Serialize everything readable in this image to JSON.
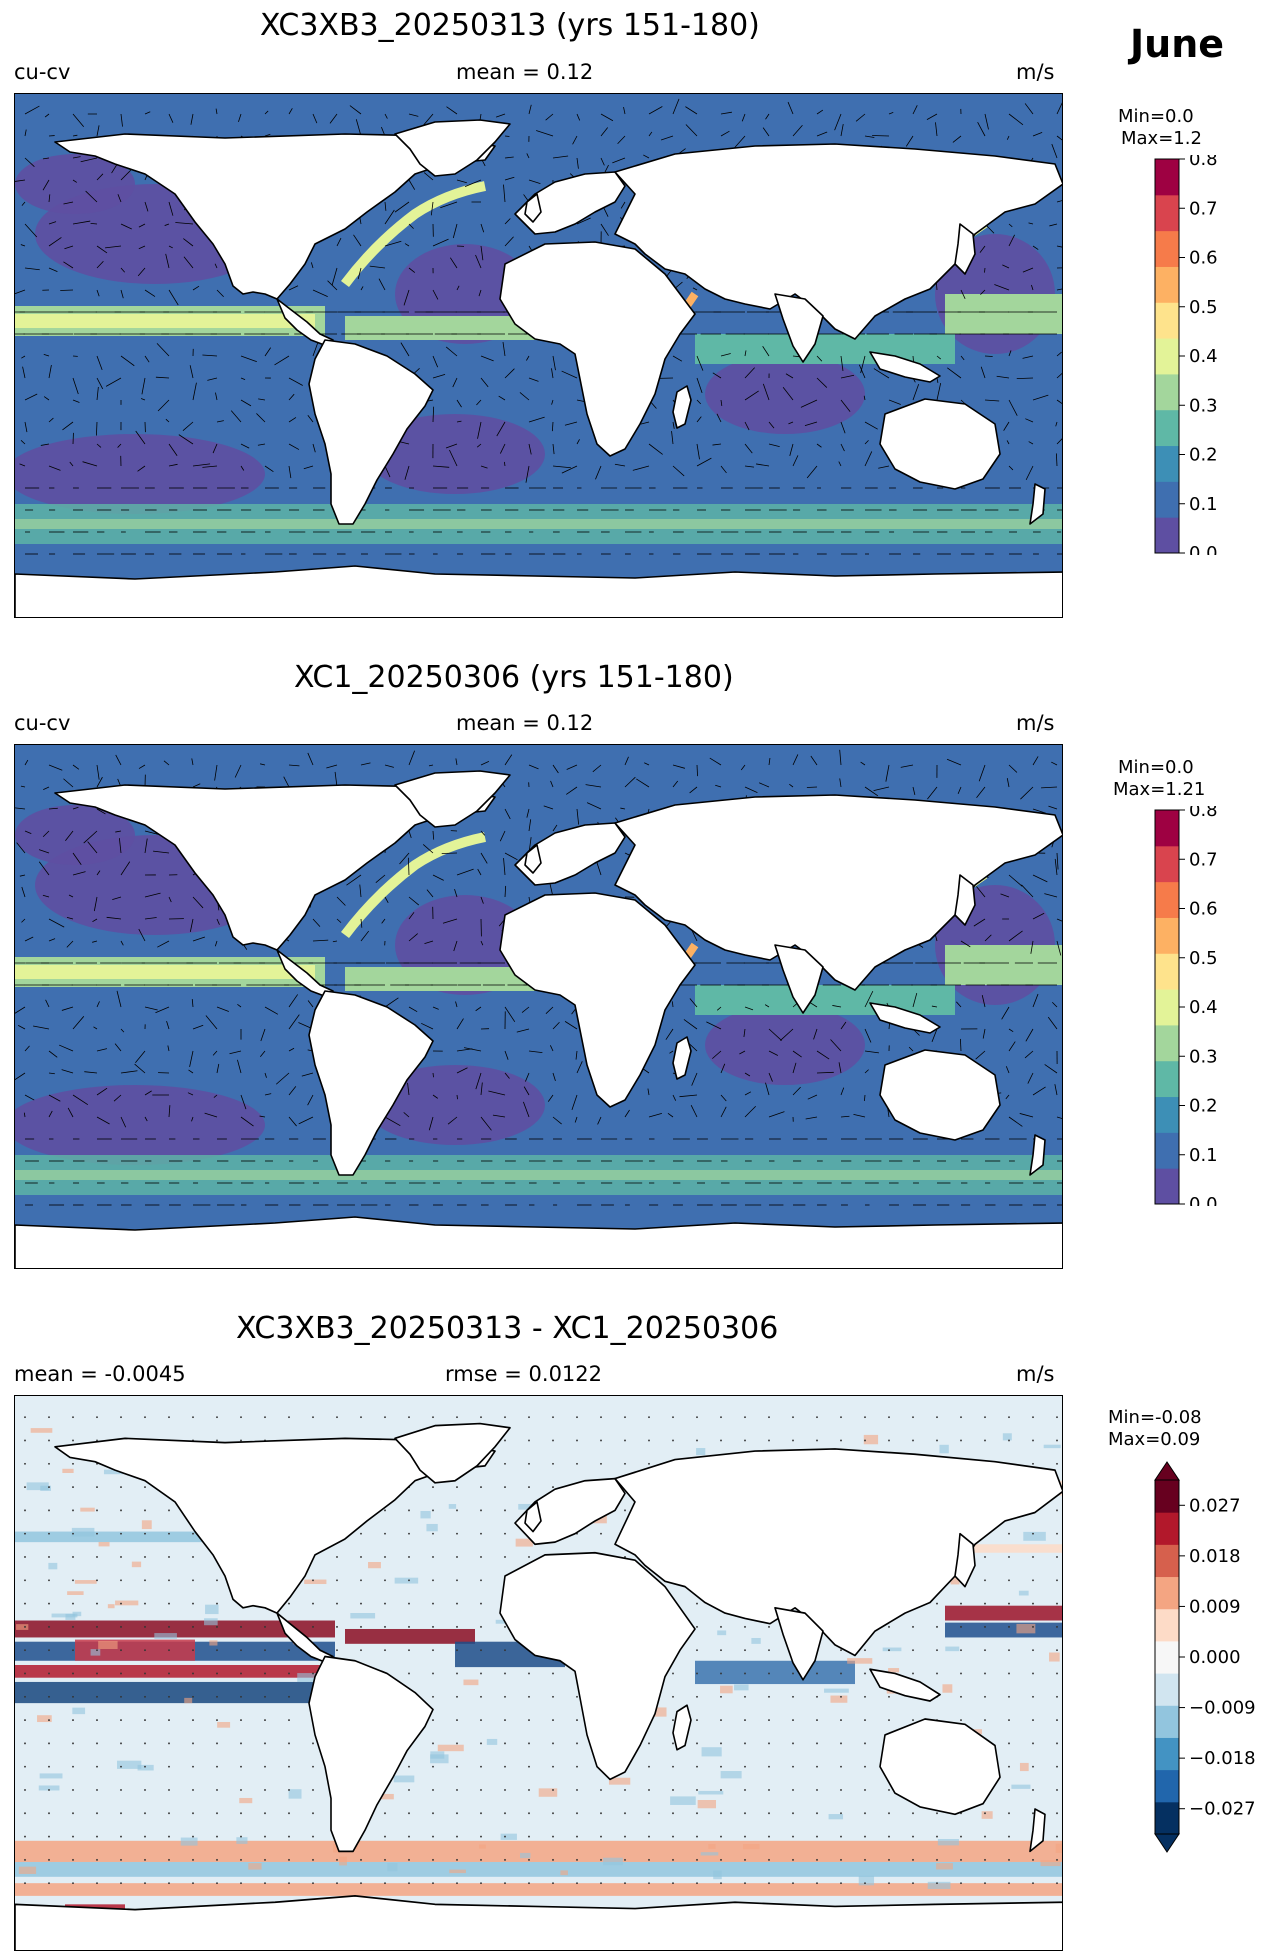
{
  "figure": {
    "month": "June"
  },
  "panels": [
    {
      "title": "XC3XB3_20250313 (yrs 151-180)",
      "left_label": "cu-cv",
      "center_label": "mean = 0.12",
      "units": "m/s",
      "minmax": [
        "Min=0.0",
        "Max=1.2"
      ],
      "colorbar": {
        "ticks": [
          "0.0",
          "0.1",
          "0.2",
          "0.3",
          "0.4",
          "0.5",
          "0.6",
          "0.7",
          "0.8"
        ],
        "colors": [
          "#5e4fa2",
          "#3f6fb0",
          "#3d8fb6",
          "#5fb8a6",
          "#a3d69c",
          "#e3f398",
          "#fee38c",
          "#fdb163",
          "#f67b4a",
          "#d9444e",
          "#9e0142"
        ]
      }
    },
    {
      "title": "XC1_20250306 (yrs 151-180)",
      "left_label": "cu-cv",
      "center_label": "mean = 0.12",
      "units": "m/s",
      "minmax": [
        "Min=0.0",
        "Max=1.21"
      ],
      "colorbar": {
        "ticks": [
          "0.0",
          "0.1",
          "0.2",
          "0.3",
          "0.4",
          "0.5",
          "0.6",
          "0.7",
          "0.8"
        ],
        "colors": [
          "#5e4fa2",
          "#3f6fb0",
          "#3d8fb6",
          "#5fb8a6",
          "#a3d69c",
          "#e3f398",
          "#fee38c",
          "#fdb163",
          "#f67b4a",
          "#d9444e",
          "#9e0142"
        ]
      }
    },
    {
      "title": "XC3XB3_20250313 - XC1_20250306",
      "left_label": "mean = -0.0045",
      "center_label": "rmse = 0.0122",
      "units": "m/s",
      "minmax": [
        "Min=-0.08",
        "Max=0.09"
      ],
      "colorbar": {
        "ticks": [
          "0.027",
          "0.018",
          "0.009",
          "0.000",
          "−0.009",
          "−0.018",
          "−0.027"
        ],
        "colors": [
          "#053061",
          "#2166ac",
          "#4393c3",
          "#92c5de",
          "#d1e5f0",
          "#f7f7f7",
          "#fddbc7",
          "#f4a582",
          "#d6604d",
          "#b2182b",
          "#67001f"
        ]
      }
    }
  ]
}
